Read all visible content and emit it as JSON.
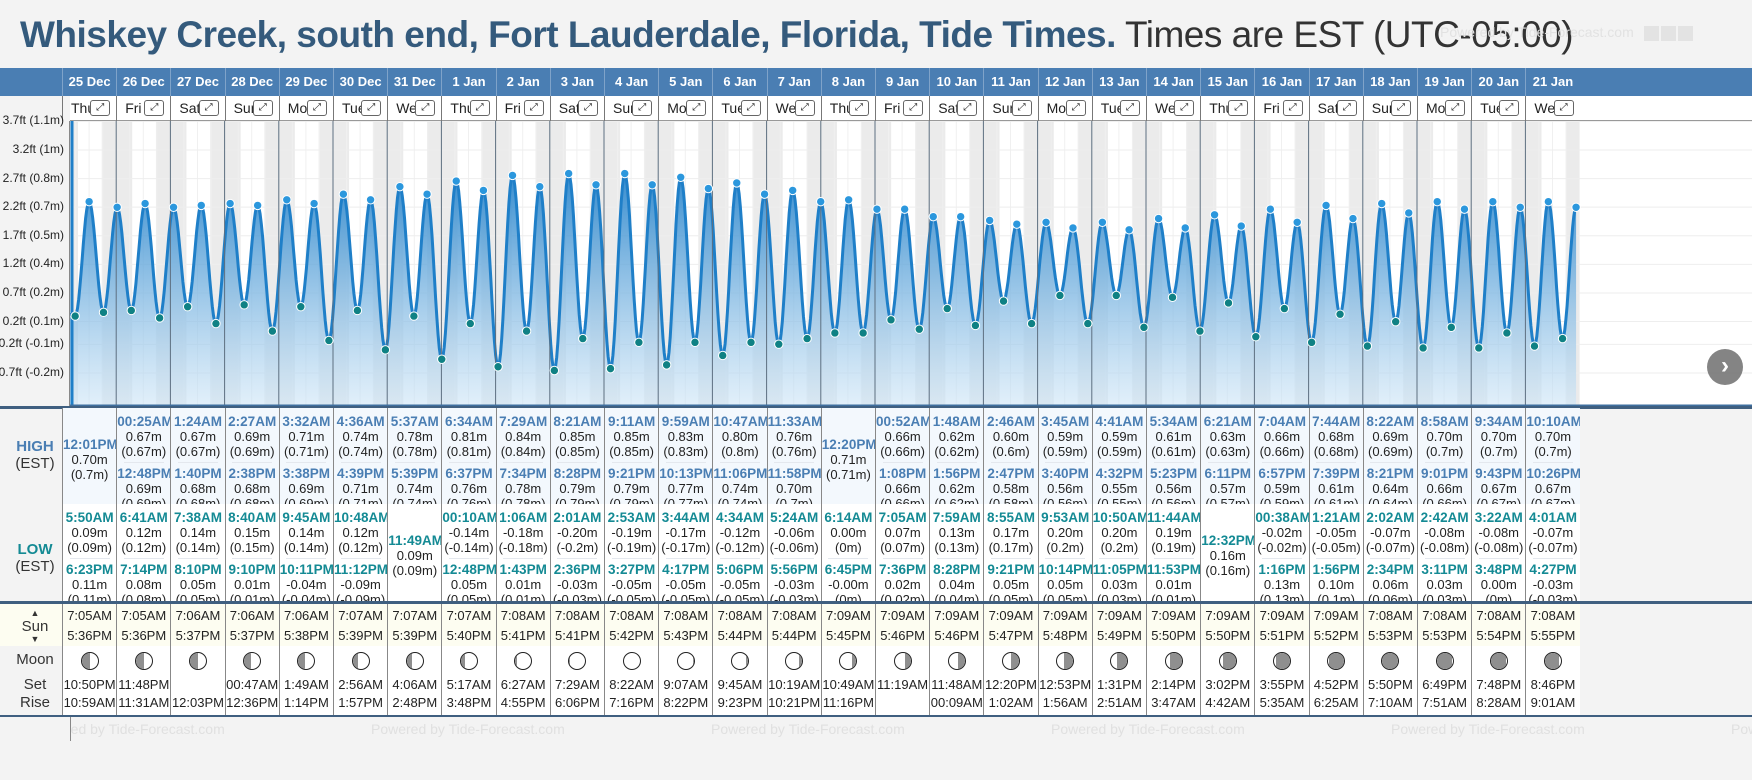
{
  "header": {
    "location": "Whiskey Creek, south end, Fort Lauderdale, Florida, Tide Times.",
    "timezone": "Times are EST (UTC-05:00)",
    "watermark": "Powered by Tide-Forecast.com"
  },
  "labels": {
    "high": "HIGH",
    "high_tz": "(EST)",
    "low": "LOW",
    "low_tz": "(EST)",
    "sun": "Sun",
    "moon": "Moon",
    "moon_set": "Set",
    "moon_rise": "Rise",
    "footer": "Powered by Tide-Forecast.com"
  },
  "colors": {
    "header_blue": "#4a7eb3",
    "title_blue": "#345a7c",
    "tide_line": "#1f7fc8",
    "high_marker": "#2b97dd",
    "low_marker": "#0f8184"
  },
  "chart_data": {
    "type": "area",
    "title": "Tide heights",
    "ylabel": "Height",
    "yticks": [
      "3.7ft (1.1m)",
      "3.2ft (1m)",
      "2.7ft (0.8m)",
      "2.2ft (0.7m)",
      "1.7ft (0.5m)",
      "1.2ft (0.4m)",
      "0.7ft (0.2m)",
      "0.2ft (0.1m)",
      "-0.2ft (-0.1m)",
      "-0.7ft (-0.2m)"
    ],
    "ytick_ft": [
      3.7,
      3.2,
      2.7,
      2.2,
      1.7,
      1.2,
      0.7,
      0.2,
      -0.2,
      -0.7
    ],
    "ylim_ft": [
      -0.75,
      3.95
    ],
    "units": "m",
    "x_unit": "days since 25 Dec 00:00"
  },
  "days": [
    {
      "date": "25 Dec",
      "dow": "Thu",
      "high": [
        {
          "t": "12:01PM",
          "h": "0.70m",
          "hm": "(0.7m)"
        }
      ],
      "low": [
        {
          "t": "5:50AM",
          "h": "0.09m",
          "hm": "(0.09m)"
        },
        {
          "t": "6:23PM",
          "h": "0.11m",
          "hm": "(0.11m)"
        }
      ],
      "sunrise": "7:05AM",
      "sunset": "5:36PM",
      "moon_phase": 0.45,
      "moonset": "10:50PM",
      "moonrise": "10:59AM"
    },
    {
      "date": "26 Dec",
      "dow": "Fri",
      "high": [
        {
          "t": "00:25AM",
          "h": "0.67m",
          "hm": "(0.67m)"
        },
        {
          "t": "12:48PM",
          "h": "0.69m",
          "hm": "(0.69m)"
        }
      ],
      "low": [
        {
          "t": "6:41AM",
          "h": "0.12m",
          "hm": "(0.12m)"
        },
        {
          "t": "7:14PM",
          "h": "0.08m",
          "hm": "(0.08m)"
        }
      ],
      "sunrise": "7:05AM",
      "sunset": "5:36PM",
      "moon_phase": 0.48,
      "moonset": "11:48PM",
      "moonrise": "11:31AM"
    },
    {
      "date": "27 Dec",
      "dow": "Sat",
      "high": [
        {
          "t": "1:24AM",
          "h": "0.67m",
          "hm": "(0.67m)"
        },
        {
          "t": "1:40PM",
          "h": "0.68m",
          "hm": "(0.68m)"
        }
      ],
      "low": [
        {
          "t": "7:38AM",
          "h": "0.14m",
          "hm": "(0.14m)"
        },
        {
          "t": "8:10PM",
          "h": "0.05m",
          "hm": "(0.05m)"
        }
      ],
      "sunrise": "7:06AM",
      "sunset": "5:37PM",
      "moon_phase": 0.5,
      "moonset": "",
      "moonrise": "12:03PM"
    },
    {
      "date": "28 Dec",
      "dow": "Sun",
      "high": [
        {
          "t": "2:27AM",
          "h": "0.69m",
          "hm": "(0.69m)"
        },
        {
          "t": "2:38PM",
          "h": "0.68m",
          "hm": "(0.68m)"
        }
      ],
      "low": [
        {
          "t": "8:40AM",
          "h": "0.15m",
          "hm": "(0.15m)"
        },
        {
          "t": "9:10PM",
          "h": "0.01m",
          "hm": "(0.01m)"
        }
      ],
      "sunrise": "7:06AM",
      "sunset": "5:37PM",
      "moon_phase": 0.55,
      "moonset": "00:47AM",
      "moonrise": "12:36PM"
    },
    {
      "date": "29 Dec",
      "dow": "Mon",
      "high": [
        {
          "t": "3:32AM",
          "h": "0.71m",
          "hm": "(0.71m)"
        },
        {
          "t": "3:38PM",
          "h": "0.69m",
          "hm": "(0.69m)"
        }
      ],
      "low": [
        {
          "t": "9:45AM",
          "h": "0.14m",
          "hm": "(0.14m)"
        },
        {
          "t": "10:11PM",
          "h": "-0.04m",
          "hm": "(-0.04m)"
        }
      ],
      "sunrise": "7:06AM",
      "sunset": "5:38PM",
      "moon_phase": 0.6,
      "moonset": "1:49AM",
      "moonrise": "1:14PM"
    },
    {
      "date": "30 Dec",
      "dow": "Tue",
      "high": [
        {
          "t": "4:36AM",
          "h": "0.74m",
          "hm": "(0.74m)"
        },
        {
          "t": "4:39PM",
          "h": "0.71m",
          "hm": "(0.71m)"
        }
      ],
      "low": [
        {
          "t": "10:48AM",
          "h": "0.12m",
          "hm": "(0.12m)"
        },
        {
          "t": "11:12PM",
          "h": "-0.09m",
          "hm": "(-0.09m)"
        }
      ],
      "sunrise": "7:07AM",
      "sunset": "5:39PM",
      "moon_phase": 0.65,
      "moonset": "2:56AM",
      "moonrise": "1:57PM"
    },
    {
      "date": "31 Dec",
      "dow": "Wed",
      "high": [
        {
          "t": "5:37AM",
          "h": "0.78m",
          "hm": "(0.78m)"
        },
        {
          "t": "5:39PM",
          "h": "0.74m",
          "hm": "(0.74m)"
        }
      ],
      "low": [
        {
          "t": "11:49AM",
          "h": "0.09m",
          "hm": "(0.09m)"
        }
      ],
      "sunrise": "7:07AM",
      "sunset": "5:39PM",
      "moon_phase": 0.7,
      "moonset": "4:06AM",
      "moonrise": "2:48PM"
    },
    {
      "date": "1 Jan",
      "dow": "Thu",
      "high": [
        {
          "t": "6:34AM",
          "h": "0.81m",
          "hm": "(0.81m)"
        },
        {
          "t": "6:37PM",
          "h": "0.76m",
          "hm": "(0.76m)"
        }
      ],
      "low": [
        {
          "t": "00:10AM",
          "h": "-0.14m",
          "hm": "(-0.14m)"
        },
        {
          "t": "12:48PM",
          "h": "0.05m",
          "hm": "(0.05m)"
        }
      ],
      "sunrise": "7:07AM",
      "sunset": "5:40PM",
      "moon_phase": 0.78,
      "moonset": "5:17AM",
      "moonrise": "3:48PM"
    },
    {
      "date": "2 Jan",
      "dow": "Fri",
      "high": [
        {
          "t": "7:29AM",
          "h": "0.84m",
          "hm": "(0.84m)"
        },
        {
          "t": "7:34PM",
          "h": "0.78m",
          "hm": "(0.78m)"
        }
      ],
      "low": [
        {
          "t": "1:06AM",
          "h": "-0.18m",
          "hm": "(-0.18m)"
        },
        {
          "t": "1:43PM",
          "h": "0.01m",
          "hm": "(0.01m)"
        }
      ],
      "sunrise": "7:08AM",
      "sunset": "5:41PM",
      "moon_phase": 0.88,
      "moonset": "6:27AM",
      "moonrise": "4:55PM"
    },
    {
      "date": "3 Jan",
      "dow": "Sat",
      "high": [
        {
          "t": "8:21AM",
          "h": "0.85m",
          "hm": "(0.85m)"
        },
        {
          "t": "8:28PM",
          "h": "0.79m",
          "hm": "(0.79m)"
        }
      ],
      "low": [
        {
          "t": "2:01AM",
          "h": "-0.20m",
          "hm": "(-0.2m)"
        },
        {
          "t": "2:36PM",
          "h": "-0.03m",
          "hm": "(-0.03m)"
        }
      ],
      "sunrise": "7:08AM",
      "sunset": "5:41PM",
      "moon_phase": 0.97,
      "moonset": "7:29AM",
      "moonrise": "6:06PM"
    },
    {
      "date": "4 Jan",
      "dow": "Sun",
      "high": [
        {
          "t": "9:11AM",
          "h": "0.85m",
          "hm": "(0.85m)"
        },
        {
          "t": "9:21PM",
          "h": "0.79m",
          "hm": "(0.79m)"
        }
      ],
      "low": [
        {
          "t": "2:53AM",
          "h": "-0.19m",
          "hm": "(-0.19m)"
        },
        {
          "t": "3:27PM",
          "h": "-0.05m",
          "hm": "(-0.05m)"
        }
      ],
      "sunrise": "7:08AM",
      "sunset": "5:42PM",
      "moon_phase": 1.0,
      "moonset": "8:22AM",
      "moonrise": "7:16PM"
    },
    {
      "date": "5 Jan",
      "dow": "Mon",
      "high": [
        {
          "t": "9:59AM",
          "h": "0.83m",
          "hm": "(0.83m)"
        },
        {
          "t": "10:13PM",
          "h": "0.77m",
          "hm": "(0.77m)"
        }
      ],
      "low": [
        {
          "t": "3:44AM",
          "h": "-0.17m",
          "hm": "(-0.17m)"
        },
        {
          "t": "4:17PM",
          "h": "-0.05m",
          "hm": "(-0.05m)"
        }
      ],
      "sunrise": "7:08AM",
      "sunset": "5:43PM",
      "moon_phase": 1.05,
      "moonset": "9:07AM",
      "moonrise": "8:22PM"
    },
    {
      "date": "6 Jan",
      "dow": "Tue",
      "high": [
        {
          "t": "10:47AM",
          "h": "0.80m",
          "hm": "(0.8m)"
        },
        {
          "t": "11:06PM",
          "h": "0.74m",
          "hm": "(0.74m)"
        }
      ],
      "low": [
        {
          "t": "4:34AM",
          "h": "-0.12m",
          "hm": "(-0.12m)"
        },
        {
          "t": "5:06PM",
          "h": "-0.05m",
          "hm": "(-0.05m)"
        }
      ],
      "sunrise": "7:08AM",
      "sunset": "5:44PM",
      "moon_phase": 1.12,
      "moonset": "9:45AM",
      "moonrise": "9:23PM"
    },
    {
      "date": "7 Jan",
      "dow": "Wed",
      "high": [
        {
          "t": "11:33AM",
          "h": "0.76m",
          "hm": "(0.76m)"
        },
        {
          "t": "11:58PM",
          "h": "0.70m",
          "hm": "(0.7m)"
        }
      ],
      "low": [
        {
          "t": "5:24AM",
          "h": "-0.06m",
          "hm": "(-0.06m)"
        },
        {
          "t": "5:56PM",
          "h": "-0.03m",
          "hm": "(-0.03m)"
        }
      ],
      "sunrise": "7:08AM",
      "sunset": "5:44PM",
      "moon_phase": 1.2,
      "moonset": "10:19AM",
      "moonrise": "10:21PM"
    },
    {
      "date": "8 Jan",
      "dow": "Thu",
      "high": [
        {
          "t": "12:20PM",
          "h": "0.71m",
          "hm": "(0.71m)"
        }
      ],
      "low": [
        {
          "t": "6:14AM",
          "h": "0.00m",
          "hm": "(0m)"
        },
        {
          "t": "6:45PM",
          "h": "-0.00m",
          "hm": "(0m)"
        }
      ],
      "sunrise": "7:09AM",
      "sunset": "5:45PM",
      "moon_phase": 1.28,
      "moonset": "10:49AM",
      "moonrise": "11:16PM"
    },
    {
      "date": "9 Jan",
      "dow": "Fri",
      "high": [
        {
          "t": "00:52AM",
          "h": "0.66m",
          "hm": "(0.66m)"
        },
        {
          "t": "1:08PM",
          "h": "0.66m",
          "hm": "(0.66m)"
        }
      ],
      "low": [
        {
          "t": "7:05AM",
          "h": "0.07m",
          "hm": "(0.07m)"
        },
        {
          "t": "7:36PM",
          "h": "0.02m",
          "hm": "(0.02m)"
        }
      ],
      "sunrise": "7:09AM",
      "sunset": "5:46PM",
      "moon_phase": 1.35,
      "moonset": "11:19AM",
      "moonrise": ""
    },
    {
      "date": "10 Jan",
      "dow": "Sat",
      "high": [
        {
          "t": "1:48AM",
          "h": "0.62m",
          "hm": "(0.62m)"
        },
        {
          "t": "1:56PM",
          "h": "0.62m",
          "hm": "(0.62m)"
        }
      ],
      "low": [
        {
          "t": "7:59AM",
          "h": "0.13m",
          "hm": "(0.13m)"
        },
        {
          "t": "8:28PM",
          "h": "0.04m",
          "hm": "(0.04m)"
        }
      ],
      "sunrise": "7:09AM",
      "sunset": "5:46PM",
      "moon_phase": 1.42,
      "moonset": "11:48AM",
      "moonrise": "00:09AM"
    },
    {
      "date": "11 Jan",
      "dow": "Sun",
      "high": [
        {
          "t": "2:46AM",
          "h": "0.60m",
          "hm": "(0.6m)"
        },
        {
          "t": "2:47PM",
          "h": "0.58m",
          "hm": "(0.58m)"
        }
      ],
      "low": [
        {
          "t": "8:55AM",
          "h": "0.17m",
          "hm": "(0.17m)"
        },
        {
          "t": "9:21PM",
          "h": "0.05m",
          "hm": "(0.05m)"
        }
      ],
      "sunrise": "7:09AM",
      "sunset": "5:47PM",
      "moon_phase": 1.5,
      "moonset": "12:20PM",
      "moonrise": "1:02AM"
    },
    {
      "date": "12 Jan",
      "dow": "Mon",
      "high": [
        {
          "t": "3:45AM",
          "h": "0.59m",
          "hm": "(0.59m)"
        },
        {
          "t": "3:40PM",
          "h": "0.56m",
          "hm": "(0.56m)"
        }
      ],
      "low": [
        {
          "t": "9:53AM",
          "h": "0.20m",
          "hm": "(0.2m)"
        },
        {
          "t": "10:14PM",
          "h": "0.05m",
          "hm": "(0.05m)"
        }
      ],
      "sunrise": "7:09AM",
      "sunset": "5:48PM",
      "moon_phase": 1.56,
      "moonset": "12:53PM",
      "moonrise": "1:56AM"
    },
    {
      "date": "13 Jan",
      "dow": "Tue",
      "high": [
        {
          "t": "4:41AM",
          "h": "0.59m",
          "hm": "(0.59m)"
        },
        {
          "t": "4:32PM",
          "h": "0.55m",
          "hm": "(0.55m)"
        }
      ],
      "low": [
        {
          "t": "10:50AM",
          "h": "0.20m",
          "hm": "(0.2m)"
        },
        {
          "t": "11:05PM",
          "h": "0.03m",
          "hm": "(0.03m)"
        }
      ],
      "sunrise": "7:09AM",
      "sunset": "5:49PM",
      "moon_phase": 1.62,
      "moonset": "1:31PM",
      "moonrise": "2:51AM"
    },
    {
      "date": "14 Jan",
      "dow": "Wed",
      "high": [
        {
          "t": "5:34AM",
          "h": "0.61m",
          "hm": "(0.61m)"
        },
        {
          "t": "5:23PM",
          "h": "0.56m",
          "hm": "(0.56m)"
        }
      ],
      "low": [
        {
          "t": "11:44AM",
          "h": "0.19m",
          "hm": "(0.19m)"
        },
        {
          "t": "11:53PM",
          "h": "0.01m",
          "hm": "(0.01m)"
        }
      ],
      "sunrise": "7:09AM",
      "sunset": "5:50PM",
      "moon_phase": 1.7,
      "moonset": "2:14PM",
      "moonrise": "3:47AM"
    },
    {
      "date": "15 Jan",
      "dow": "Thu",
      "high": [
        {
          "t": "6:21AM",
          "h": "0.63m",
          "hm": "(0.63m)"
        },
        {
          "t": "6:11PM",
          "h": "0.57m",
          "hm": "(0.57m)"
        }
      ],
      "low": [
        {
          "t": "12:32PM",
          "h": "0.16m",
          "hm": "(0.16m)"
        }
      ],
      "sunrise": "7:09AM",
      "sunset": "5:50PM",
      "moon_phase": 1.78,
      "moonset": "3:02PM",
      "moonrise": "4:42AM"
    },
    {
      "date": "16 Jan",
      "dow": "Fri",
      "high": [
        {
          "t": "7:04AM",
          "h": "0.66m",
          "hm": "(0.66m)"
        },
        {
          "t": "6:57PM",
          "h": "0.59m",
          "hm": "(0.59m)"
        }
      ],
      "low": [
        {
          "t": "00:38AM",
          "h": "-0.02m",
          "hm": "(-0.02m)"
        },
        {
          "t": "1:16PM",
          "h": "0.13m",
          "hm": "(0.13m)"
        }
      ],
      "sunrise": "7:09AM",
      "sunset": "5:51PM",
      "moon_phase": 1.86,
      "moonset": "3:55PM",
      "moonrise": "5:35AM"
    },
    {
      "date": "17 Jan",
      "dow": "Sat",
      "high": [
        {
          "t": "7:44AM",
          "h": "0.68m",
          "hm": "(0.68m)"
        },
        {
          "t": "7:39PM",
          "h": "0.61m",
          "hm": "(0.61m)"
        }
      ],
      "low": [
        {
          "t": "1:21AM",
          "h": "-0.05m",
          "hm": "(-0.05m)"
        },
        {
          "t": "1:56PM",
          "h": "0.10m",
          "hm": "(0.1m)"
        }
      ],
      "sunrise": "7:09AM",
      "sunset": "5:52PM",
      "moon_phase": 1.97,
      "moonset": "4:52PM",
      "moonrise": "6:25AM"
    },
    {
      "date": "18 Jan",
      "dow": "Sun",
      "high": [
        {
          "t": "8:22AM",
          "h": "0.69m",
          "hm": "(0.69m)"
        },
        {
          "t": "8:21PM",
          "h": "0.64m",
          "hm": "(0.64m)"
        }
      ],
      "low": [
        {
          "t": "2:02AM",
          "h": "-0.07m",
          "hm": "(-0.07m)"
        },
        {
          "t": "2:34PM",
          "h": "0.06m",
          "hm": "(0.06m)"
        }
      ],
      "sunrise": "7:08AM",
      "sunset": "5:53PM",
      "moon_phase": 2.0,
      "moonset": "5:50PM",
      "moonrise": "7:10AM"
    },
    {
      "date": "19 Jan",
      "dow": "Mon",
      "high": [
        {
          "t": "8:58AM",
          "h": "0.70m",
          "hm": "(0.7m)"
        },
        {
          "t": "9:01PM",
          "h": "0.66m",
          "hm": "(0.66m)"
        }
      ],
      "low": [
        {
          "t": "2:42AM",
          "h": "-0.08m",
          "hm": "(-0.08m)"
        },
        {
          "t": "3:11PM",
          "h": "0.03m",
          "hm": "(0.03m)"
        }
      ],
      "sunrise": "7:08AM",
      "sunset": "5:53PM",
      "moon_phase": 0.03,
      "moonset": "6:49PM",
      "moonrise": "7:51AM"
    },
    {
      "date": "20 Jan",
      "dow": "Tue",
      "high": [
        {
          "t": "9:34AM",
          "h": "0.70m",
          "hm": "(0.7m)"
        },
        {
          "t": "9:43PM",
          "h": "0.67m",
          "hm": "(0.67m)"
        }
      ],
      "low": [
        {
          "t": "3:22AM",
          "h": "-0.08m",
          "hm": "(-0.08m)"
        },
        {
          "t": "3:48PM",
          "h": "0.00m",
          "hm": "(0m)"
        }
      ],
      "sunrise": "7:08AM",
      "sunset": "5:54PM",
      "moon_phase": 0.08,
      "moonset": "7:48PM",
      "moonrise": "8:28AM"
    },
    {
      "date": "21 Jan",
      "dow": "Wed",
      "high": [
        {
          "t": "10:10AM",
          "h": "0.70m",
          "hm": "(0.7m)"
        },
        {
          "t": "10:26PM",
          "h": "0.67m",
          "hm": "(0.67m)"
        }
      ],
      "low": [
        {
          "t": "4:01AM",
          "h": "-0.07m",
          "hm": "(-0.07m)"
        },
        {
          "t": "4:27PM",
          "h": "-0.03m",
          "hm": "(-0.03m)"
        }
      ],
      "sunrise": "7:08AM",
      "sunset": "5:55PM",
      "moon_phase": 0.14,
      "moonset": "8:46PM",
      "moonrise": "9:01AM"
    }
  ]
}
